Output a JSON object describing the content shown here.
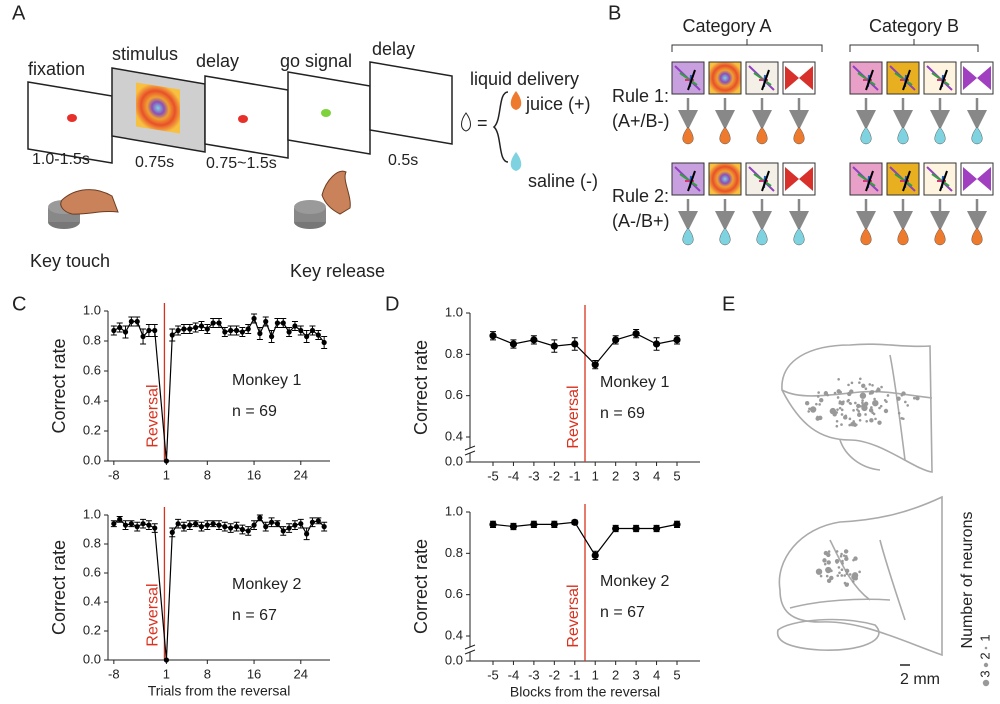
{
  "panel_labels": [
    "A",
    "B",
    "C",
    "D",
    "E"
  ],
  "panel_a": {
    "epochs": [
      "fixation",
      "stimulus",
      "delay",
      "go signal",
      "delay"
    ],
    "durations": [
      "1.0-1.5s",
      "0.75s",
      "0.75~1.5s",
      "0.5s"
    ],
    "liquid_delivery": "liquid delivery",
    "equals": "=",
    "juice": "juice (+)",
    "saline": "saline (-)",
    "key_touch": "Key touch",
    "key_release": "Key release"
  },
  "panel_b": {
    "categories": [
      "Category A",
      "Category B"
    ],
    "rules": [
      {
        "name": "Rule 1:",
        "mapping": "(A+/B-)"
      },
      {
        "name": "Rule 2:",
        "mapping": "(A-/B+)"
      }
    ]
  },
  "panel_e": {
    "legend_title": "Number of neurons",
    "legend": [
      "1",
      "2",
      "3"
    ],
    "scale_bar": "2 mm"
  },
  "chart_data": [
    {
      "type": "line",
      "ylabel": "Correct rate",
      "annotation": "Monkey 1",
      "n_label": "n = 69",
      "reversal_label": "Reversal",
      "reversal_color": "#d9321f",
      "color": "#000000",
      "x": [
        -8,
        -7,
        -6,
        -5,
        -4,
        -3,
        -2,
        -1,
        1,
        2,
        3,
        4,
        5,
        6,
        7,
        8,
        9,
        10,
        11,
        12,
        13,
        14,
        15,
        16,
        17,
        18,
        19,
        20,
        21,
        22,
        23,
        24,
        25,
        26,
        27,
        28
      ],
      "values": [
        0.87,
        0.89,
        0.86,
        0.93,
        0.93,
        0.83,
        0.87,
        0.87,
        0.0,
        0.84,
        0.87,
        0.88,
        0.88,
        0.89,
        0.9,
        0.88,
        0.92,
        0.92,
        0.86,
        0.87,
        0.87,
        0.86,
        0.88,
        0.95,
        0.85,
        0.93,
        0.83,
        0.92,
        0.92,
        0.86,
        0.9,
        0.87,
        0.83,
        0.87,
        0.84,
        0.79
      ],
      "errors": [
        0.03,
        0.03,
        0.04,
        0.03,
        0.03,
        0.05,
        0.04,
        0.04,
        0,
        0.04,
        0.03,
        0.03,
        0.03,
        0.03,
        0.03,
        0.03,
        0.03,
        0.03,
        0.03,
        0.03,
        0.03,
        0.03,
        0.03,
        0.03,
        0.04,
        0.03,
        0.04,
        0.03,
        0.03,
        0.03,
        0.03,
        0.03,
        0.04,
        0.03,
        0.03,
        0.04
      ],
      "xlim": [
        -9,
        29
      ],
      "xticks": [
        -8,
        1,
        8,
        16,
        24
      ],
      "ylim": [
        0,
        1
      ],
      "yticks": [
        {
          "value": 0,
          "label": "0.0"
        },
        0.2,
        0.4,
        0.6,
        0.8,
        {
          "value": 1,
          "label": "1.0"
        }
      ]
    },
    {
      "type": "line",
      "ylabel": "Correct rate",
      "xlabel": "Trials from the reversal",
      "annotation": "Monkey 2",
      "n_label": "n = 67",
      "reversal_label": "Reversal",
      "reversal_color": "#d9321f",
      "color": "#000000",
      "x": [
        -8,
        -7,
        -6,
        -5,
        -4,
        -3,
        -2,
        -1,
        1,
        2,
        3,
        4,
        5,
        6,
        7,
        8,
        9,
        10,
        11,
        12,
        13,
        14,
        15,
        16,
        17,
        18,
        19,
        20,
        21,
        22,
        23,
        24,
        25,
        26,
        27,
        28
      ],
      "values": [
        0.94,
        0.97,
        0.93,
        0.94,
        0.92,
        0.94,
        0.93,
        0.91,
        0.0,
        0.88,
        0.94,
        0.92,
        0.93,
        0.94,
        0.92,
        0.93,
        0.94,
        0.93,
        0.92,
        0.91,
        0.92,
        0.9,
        0.89,
        0.93,
        0.98,
        0.92,
        0.95,
        0.94,
        0.89,
        0.91,
        0.93,
        0.94,
        0.87,
        0.95,
        0.96,
        0.92
      ],
      "errors": [
        0.02,
        0.02,
        0.03,
        0.02,
        0.03,
        0.03,
        0.03,
        0.03,
        0,
        0.03,
        0.03,
        0.03,
        0.03,
        0.02,
        0.03,
        0.03,
        0.02,
        0.03,
        0.03,
        0.03,
        0.03,
        0.03,
        0.03,
        0.03,
        0.02,
        0.03,
        0.03,
        0.02,
        0.03,
        0.03,
        0.03,
        0.03,
        0.04,
        0.03,
        0.02,
        0.03
      ],
      "xlim": [
        -9,
        29
      ],
      "xticks": [
        -8,
        1,
        8,
        16,
        24
      ],
      "ylim": [
        0,
        1
      ],
      "yticks": [
        {
          "value": 0,
          "label": "0.0"
        },
        0.2,
        0.4,
        0.6,
        0.8,
        {
          "value": 1,
          "label": "1.0"
        }
      ]
    },
    {
      "type": "category_line",
      "ylabel": "Correct rate",
      "annotation": "Monkey 1",
      "n_label": "n = 69",
      "reversal_label": "Reversal",
      "reversal_color": "#d9321f",
      "color": "#000000",
      "categories": [
        "-5",
        "-4",
        "-3",
        "-2",
        "-1",
        "1",
        "2",
        "3",
        "4",
        "5"
      ],
      "values": [
        0.89,
        0.85,
        0.87,
        0.84,
        0.85,
        0.75,
        0.87,
        0.9,
        0.85,
        0.87
      ],
      "errors": [
        0.02,
        0.02,
        0.02,
        0.03,
        0.03,
        0.02,
        0.02,
        0.02,
        0.03,
        0.02
      ],
      "ylim": [
        0,
        1
      ],
      "axis_break": true,
      "yticks": [
        {
          "value": 0,
          "label": "0.0"
        },
        0.4,
        0.6,
        0.8,
        {
          "value": 1,
          "label": "1.0"
        }
      ]
    },
    {
      "type": "category_line",
      "ylabel": "Correct rate",
      "xlabel": "Blocks from the reversal",
      "annotation": "Monkey 2",
      "n_label": "n = 67",
      "reversal_label": "Reversal",
      "reversal_color": "#d9321f",
      "color": "#000000",
      "categories": [
        "-5",
        "-4",
        "-3",
        "-2",
        "-1",
        "1",
        "2",
        "3",
        "4",
        "5"
      ],
      "values": [
        0.94,
        0.93,
        0.94,
        0.94,
        0.95,
        0.79,
        0.92,
        0.92,
        0.92,
        0.94
      ],
      "errors": [
        0.015,
        0.015,
        0.015,
        0.015,
        0.01,
        0.02,
        0.015,
        0.015,
        0.015,
        0.015
      ],
      "ylim": [
        0,
        1
      ],
      "axis_break": true,
      "yticks": [
        {
          "value": 0,
          "label": "0.0"
        },
        0.4,
        0.6,
        0.8,
        {
          "value": 1,
          "label": "1.0"
        }
      ]
    }
  ]
}
